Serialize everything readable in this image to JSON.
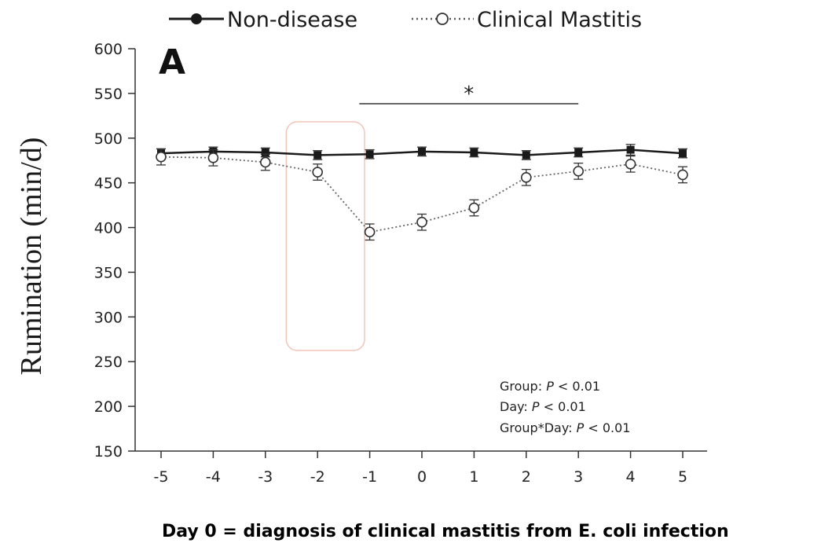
{
  "chart_data": {
    "type": "line",
    "panel_label": "A",
    "ylabel": "Rumination (min/d)",
    "xlabel": "",
    "x": [
      -5,
      -4,
      -3,
      -2,
      -1,
      0,
      1,
      2,
      3,
      4,
      5
    ],
    "x_tick_labels": [
      "-5",
      "-4",
      "-3",
      "-2",
      "-1",
      "0",
      "1",
      "2",
      "3",
      "4",
      "5"
    ],
    "ylim": [
      150,
      600
    ],
    "y_ticks": [
      150,
      200,
      250,
      300,
      350,
      400,
      450,
      500,
      550,
      600
    ],
    "y_tick_labels": [
      "150",
      "200",
      "250",
      "300",
      "350",
      "400",
      "450",
      "500",
      "550",
      "600"
    ],
    "series": [
      {
        "name": "Non-disease",
        "marker": "filled-square",
        "line_style": "solid",
        "color": "#1a1a1a",
        "values": [
          483,
          485,
          484,
          481,
          482,
          485,
          484,
          481,
          484,
          487,
          483
        ],
        "errors": [
          5,
          5,
          5,
          5,
          5,
          5,
          5,
          5,
          5,
          6,
          5
        ]
      },
      {
        "name": "Clinical Mastitis",
        "marker": "open-circle",
        "line_style": "dotted",
        "color": "#666666",
        "values": [
          479,
          478,
          473,
          462,
          395,
          406,
          422,
          456,
          463,
          471,
          459
        ],
        "errors": [
          9,
          9,
          9,
          9,
          9,
          9,
          9,
          9,
          9,
          9,
          9
        ]
      }
    ],
    "significance": {
      "label": "*",
      "x_start": -1.2,
      "x_end": 3
    },
    "stats_lines": [
      {
        "prefix": "Group: ",
        "p": "P",
        "suffix": " < 0.01"
      },
      {
        "prefix": "Day: ",
        "p": "P",
        "suffix": " < 0.01"
      },
      {
        "prefix": "Group*Day: ",
        "p": "P",
        "suffix": " < 0.01"
      }
    ],
    "legend_placement": "top",
    "highlight_range": [
      -2.6,
      -1.1
    ],
    "highlight_color": "#f3c4b8"
  },
  "footer": "Day 0 = diagnosis of clinical mastitis from E. coli infection"
}
